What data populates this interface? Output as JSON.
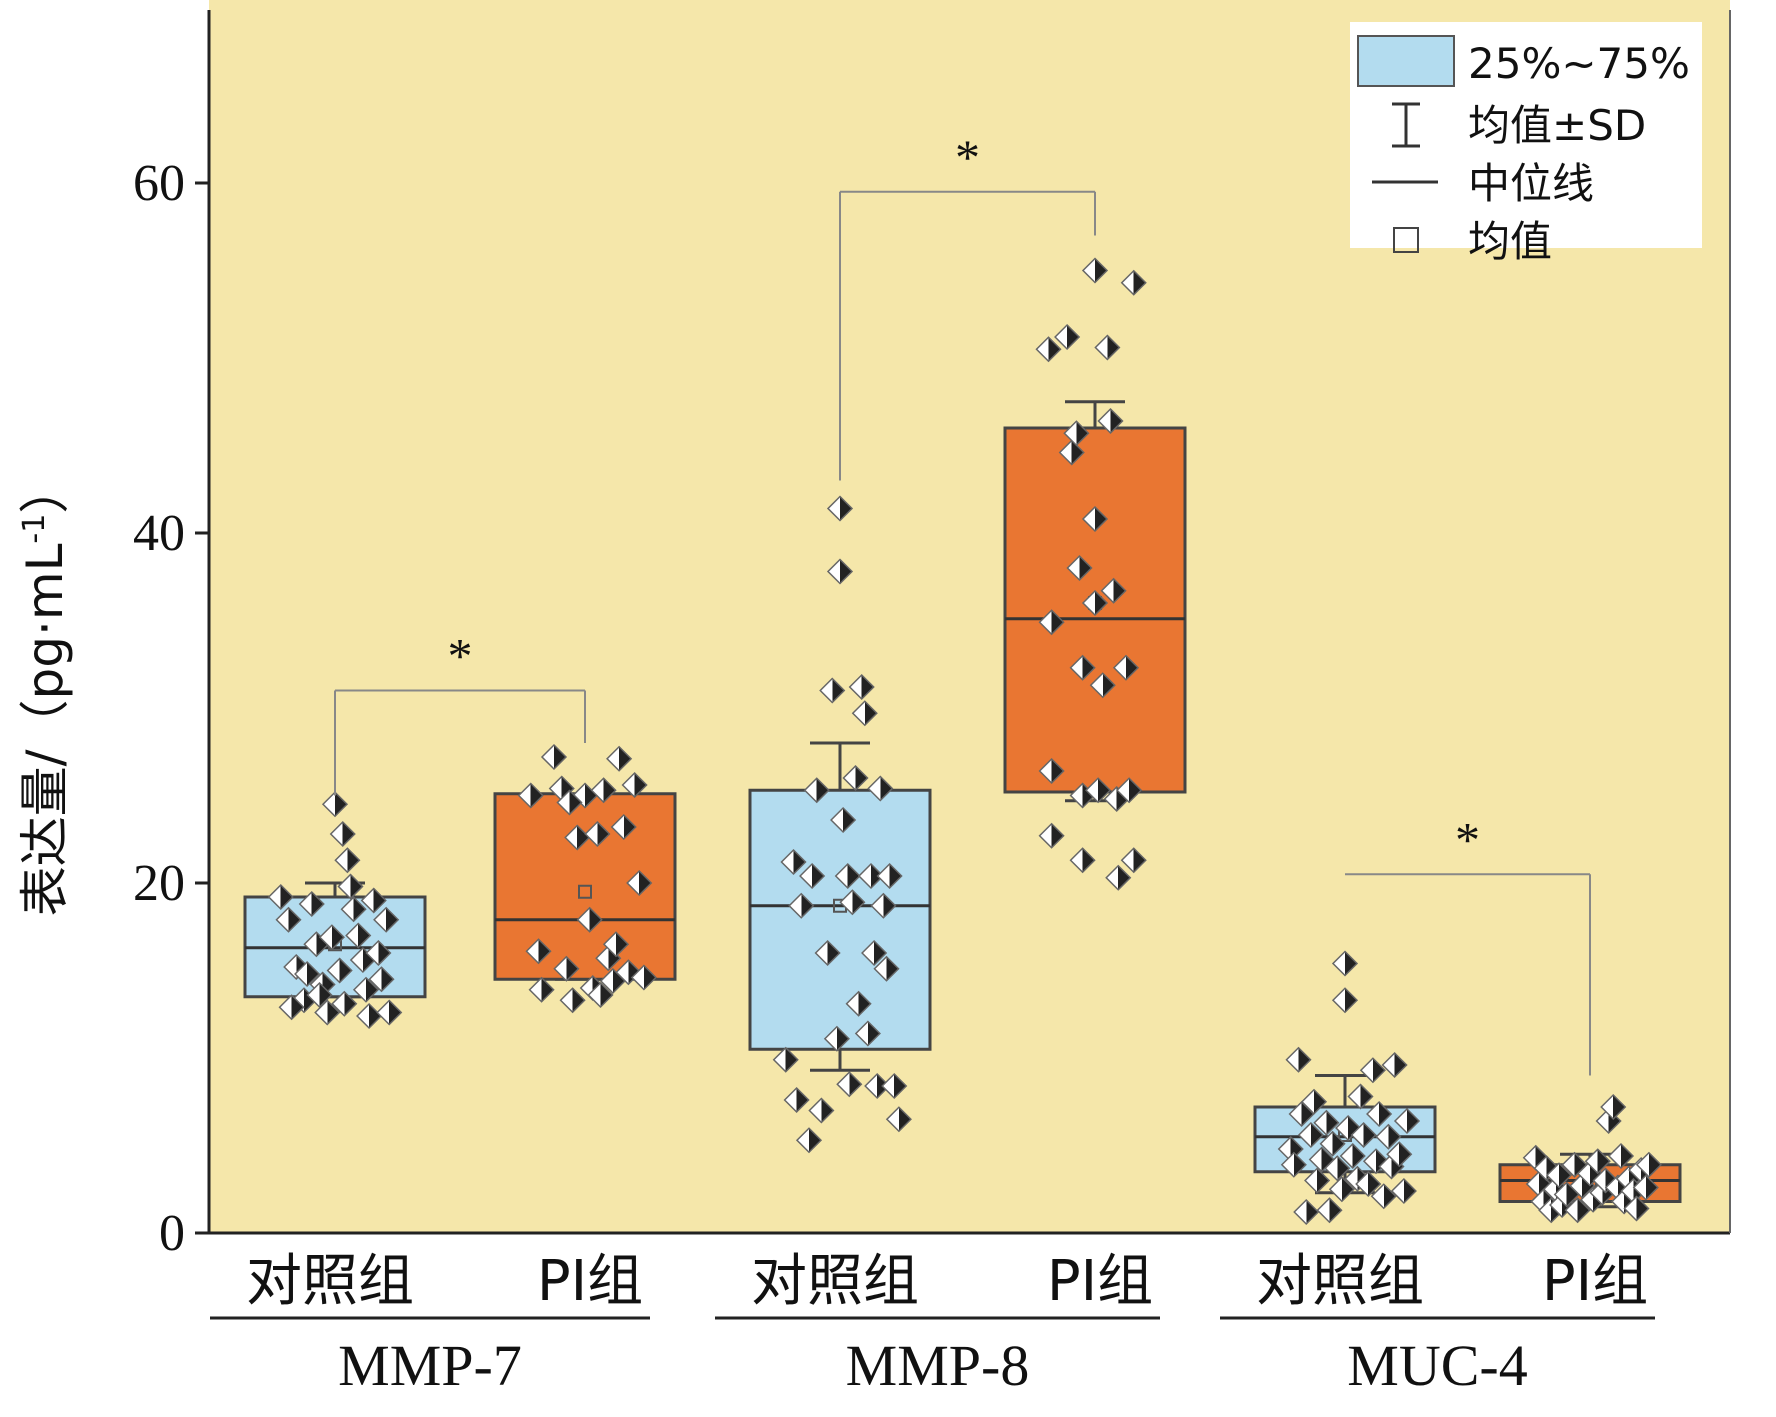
{
  "chart_data": {
    "type": "box",
    "ylabel": "表达量/（pg·mL",
    "ylabel_sup": "-1",
    "ylabel_close": "）",
    "ylim": [
      0,
      70
    ],
    "yticks": [
      0,
      20,
      40,
      60
    ],
    "groups": [
      {
        "name": "MMP-7",
        "categories": [
          "对照组",
          "PI组"
        ]
      },
      {
        "name": "MMP-8",
        "categories": [
          "对照组",
          "PI组"
        ]
      },
      {
        "name": "MUC-4",
        "categories": [
          "对照组",
          "PI组"
        ]
      }
    ],
    "legend": {
      "position": "top-right",
      "items": [
        {
          "symbol": "box",
          "label": "25%~75%"
        },
        {
          "symbol": "whisker",
          "label": "均值±SD"
        },
        {
          "symbol": "line",
          "label": "中位线"
        },
        {
          "symbol": "square",
          "label": "均值"
        }
      ]
    },
    "colors": {
      "background": "#f5e7aa",
      "control": "#b3dcef",
      "pi": "#e97632",
      "stroke": "#555555"
    },
    "significance_label": "*",
    "significance_pairs": [
      {
        "group": "MMP-7",
        "y": 31,
        "star": "*"
      },
      {
        "group": "MMP-8",
        "y": 59.5,
        "star": "*"
      },
      {
        "group": "MUC-4",
        "y": 20.5,
        "star": "*"
      }
    ],
    "boxes": [
      {
        "group": "MMP-7",
        "category": "对照组",
        "fill": "control",
        "q1": 13.5,
        "median": 16.3,
        "q3": 19.2,
        "mean": 16.5,
        "sd_low": 13.5,
        "sd_high": 20.0,
        "points": [
          [
            -0.35,
            19.2
          ],
          [
            -0.3,
            17.9
          ],
          [
            -0.25,
            15.2
          ],
          [
            -0.2,
            13.3
          ],
          [
            -0.28,
            12.9
          ],
          [
            -0.15,
            18.8
          ],
          [
            -0.12,
            16.5
          ],
          [
            -0.08,
            14.2
          ],
          [
            -0.05,
            12.6
          ],
          [
            0.0,
            24.5
          ],
          [
            0.05,
            22.8
          ],
          [
            0.08,
            21.3
          ],
          [
            0.1,
            19.8
          ],
          [
            0.12,
            18.5
          ],
          [
            0.15,
            17.0
          ],
          [
            0.18,
            15.6
          ],
          [
            0.2,
            13.9
          ],
          [
            0.22,
            12.4
          ],
          [
            0.25,
            19.0
          ],
          [
            0.28,
            16.0
          ],
          [
            0.3,
            14.5
          ],
          [
            0.33,
            17.9
          ],
          [
            -0.02,
            16.9
          ],
          [
            0.03,
            15.0
          ],
          [
            -0.1,
            13.6
          ],
          [
            0.06,
            13.1
          ],
          [
            0.35,
            12.6
          ],
          [
            -0.18,
            14.8
          ]
        ]
      },
      {
        "group": "MMP-7",
        "category": "PI组",
        "fill": "pi",
        "q1": 14.5,
        "median": 17.9,
        "q3": 25.1,
        "mean": 19.5,
        "sd_low": 14.5,
        "sd_high": 24.8,
        "points": [
          [
            -0.35,
            25.0
          ],
          [
            -0.3,
            16.1
          ],
          [
            -0.28,
            13.9
          ],
          [
            -0.2,
            27.2
          ],
          [
            -0.15,
            25.4
          ],
          [
            -0.12,
            15.1
          ],
          [
            -0.08,
            13.3
          ],
          [
            -0.05,
            22.6
          ],
          [
            0.0,
            25.0
          ],
          [
            0.03,
            17.9
          ],
          [
            0.05,
            14.0
          ],
          [
            0.08,
            22.8
          ],
          [
            0.12,
            25.3
          ],
          [
            0.15,
            15.7
          ],
          [
            0.18,
            14.4
          ],
          [
            0.22,
            27.1
          ],
          [
            0.25,
            23.2
          ],
          [
            0.28,
            14.9
          ],
          [
            0.32,
            25.6
          ],
          [
            0.35,
            20.0
          ],
          [
            0.38,
            14.6
          ],
          [
            -0.1,
            24.6
          ],
          [
            0.1,
            13.6
          ],
          [
            0.2,
            16.5
          ]
        ]
      },
      {
        "group": "MMP-8",
        "category": "对照组",
        "fill": "control",
        "q1": 10.5,
        "median": 18.7,
        "q3": 25.3,
        "mean": 18.7,
        "sd_low": 9.3,
        "sd_high": 28.0,
        "points": [
          [
            -0.35,
            9.9
          ],
          [
            -0.3,
            21.2
          ],
          [
            -0.28,
            7.6
          ],
          [
            -0.25,
            18.7
          ],
          [
            -0.2,
            5.3
          ],
          [
            -0.18,
            20.4
          ],
          [
            -0.15,
            25.3
          ],
          [
            -0.12,
            7.0
          ],
          [
            -0.08,
            16.0
          ],
          [
            -0.05,
            31.0
          ],
          [
            -0.02,
            11.1
          ],
          [
            0.0,
            41.4
          ],
          [
            0.0,
            37.8
          ],
          [
            0.02,
            23.6
          ],
          [
            0.05,
            20.4
          ],
          [
            0.06,
            8.5
          ],
          [
            0.08,
            18.9
          ],
          [
            0.1,
            26.0
          ],
          [
            0.12,
            13.1
          ],
          [
            0.14,
            31.2
          ],
          [
            0.16,
            29.7
          ],
          [
            0.18,
            11.4
          ],
          [
            0.2,
            20.4
          ],
          [
            0.22,
            16.0
          ],
          [
            0.24,
            8.4
          ],
          [
            0.26,
            25.4
          ],
          [
            0.28,
            18.7
          ],
          [
            0.3,
            15.1
          ],
          [
            0.32,
            20.4
          ],
          [
            0.35,
            8.4
          ],
          [
            0.38,
            6.5
          ]
        ]
      },
      {
        "group": "MMP-8",
        "category": "PI组",
        "fill": "pi",
        "q1": 25.2,
        "median": 35.1,
        "q3": 46.0,
        "mean": 36.0,
        "sd_low": 24.7,
        "sd_high": 47.5,
        "points": [
          [
            -0.3,
            50.5
          ],
          [
            -0.28,
            34.9
          ],
          [
            -0.28,
            26.4
          ],
          [
            -0.28,
            22.7
          ],
          [
            -0.18,
            51.2
          ],
          [
            -0.15,
            44.6
          ],
          [
            -0.12,
            45.7
          ],
          [
            -0.1,
            38.0
          ],
          [
            -0.08,
            32.3
          ],
          [
            -0.08,
            25.0
          ],
          [
            -0.08,
            21.3
          ],
          [
            0.0,
            55.0
          ],
          [
            0.0,
            40.8
          ],
          [
            0.0,
            36.0
          ],
          [
            0.02,
            25.3
          ],
          [
            0.05,
            31.3
          ],
          [
            0.08,
            50.6
          ],
          [
            0.1,
            46.4
          ],
          [
            0.12,
            36.7
          ],
          [
            0.14,
            24.8
          ],
          [
            0.15,
            20.3
          ],
          [
            0.2,
            32.3
          ],
          [
            0.22,
            25.3
          ],
          [
            0.25,
            54.3
          ],
          [
            0.25,
            21.3
          ]
        ]
      },
      {
        "group": "MUC-4",
        "category": "对照组",
        "fill": "control",
        "q1": 3.5,
        "median": 5.5,
        "q3": 7.2,
        "mean": 5.6,
        "sd_low": 2.3,
        "sd_high": 9.0,
        "points": [
          [
            -0.35,
            4.8
          ],
          [
            -0.33,
            3.9
          ],
          [
            -0.3,
            9.9
          ],
          [
            -0.28,
            6.8
          ],
          [
            -0.25,
            1.2
          ],
          [
            -0.22,
            5.6
          ],
          [
            -0.2,
            7.5
          ],
          [
            -0.18,
            3.0
          ],
          [
            -0.15,
            4.2
          ],
          [
            -0.12,
            6.3
          ],
          [
            -0.1,
            1.3
          ],
          [
            -0.08,
            5.1
          ],
          [
            -0.05,
            3.7
          ],
          [
            0.0,
            15.4
          ],
          [
            0.0,
            13.3
          ],
          [
            -0.02,
            2.5
          ],
          [
            0.02,
            6.0
          ],
          [
            0.05,
            4.4
          ],
          [
            0.08,
            3.1
          ],
          [
            0.1,
            7.8
          ],
          [
            0.12,
            5.6
          ],
          [
            0.15,
            2.8
          ],
          [
            0.18,
            9.3
          ],
          [
            0.2,
            4.1
          ],
          [
            0.22,
            6.8
          ],
          [
            0.25,
            2.1
          ],
          [
            0.28,
            5.5
          ],
          [
            0.3,
            3.8
          ],
          [
            0.32,
            9.6
          ],
          [
            0.35,
            4.5
          ],
          [
            0.38,
            2.4
          ],
          [
            0.4,
            6.4
          ]
        ]
      },
      {
        "group": "MUC-4",
        "category": "PI组",
        "fill": "pi",
        "q1": 1.8,
        "median": 3.0,
        "q3": 3.9,
        "mean": 3.0,
        "sd_low": 1.5,
        "sd_high": 4.5,
        "points": [
          [
            -0.35,
            4.3
          ],
          [
            -0.33,
            2.8
          ],
          [
            -0.3,
            1.8
          ],
          [
            -0.28,
            3.7
          ],
          [
            -0.25,
            1.3
          ],
          [
            -0.22,
            2.5
          ],
          [
            -0.2,
            3.3
          ],
          [
            -0.18,
            1.6
          ],
          [
            -0.15,
            2.2
          ],
          [
            -0.1,
            3.9
          ],
          [
            -0.08,
            1.3
          ],
          [
            -0.05,
            2.7
          ],
          [
            0.0,
            3.4
          ],
          [
            0.02,
            1.9
          ],
          [
            0.05,
            4.1
          ],
          [
            0.08,
            2.3
          ],
          [
            0.1,
            3.0
          ],
          [
            0.12,
            6.4
          ],
          [
            0.15,
            7.2
          ],
          [
            0.18,
            2.6
          ],
          [
            0.2,
            4.4
          ],
          [
            0.22,
            1.8
          ],
          [
            0.25,
            3.1
          ],
          [
            0.28,
            2.4
          ],
          [
            0.3,
            1.4
          ],
          [
            0.33,
            3.6
          ],
          [
            0.36,
            2.6
          ],
          [
            0.38,
            3.9
          ]
        ]
      }
    ]
  }
}
